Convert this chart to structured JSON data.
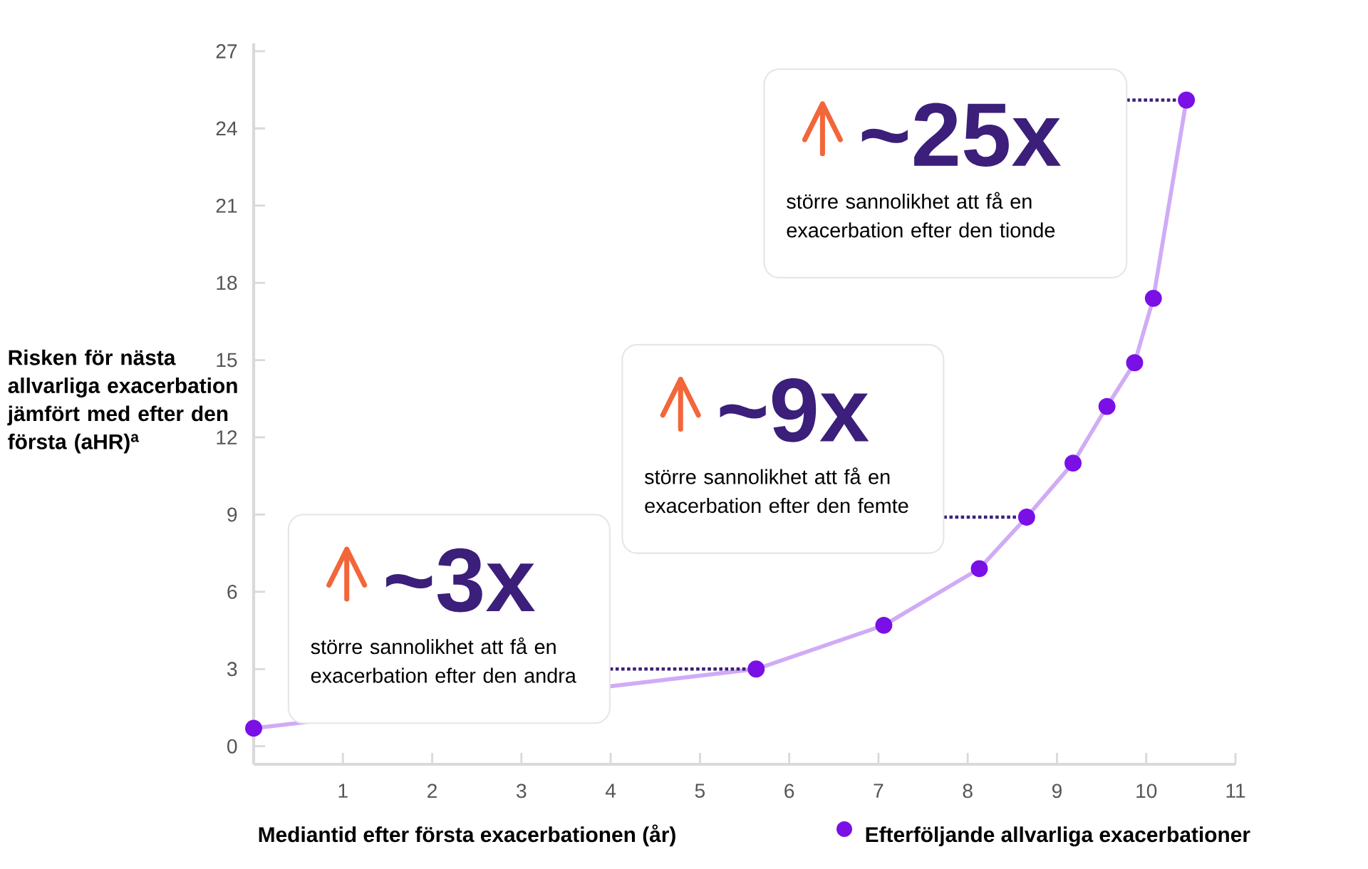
{
  "chart_data": {
    "type": "line",
    "xlabel": "Mediantid efter första exacerbationen (år)",
    "ylabel": "Risken för nästa allvarliga exacerbation jämfört med efter den första (aHR)$^{a}$",
    "x": [
      0,
      5.63,
      7.06,
      8.13,
      8.66,
      9.18,
      9.56,
      9.87,
      10.08,
      10.45
    ],
    "series": [
      {
        "name": "Efterföljande allvarliga exacerbationer",
        "color": "#7a10e6",
        "values": [
          0.7,
          3.0,
          4.7,
          6.9,
          8.9,
          11.0,
          13.2,
          14.9,
          17.4,
          25.1
        ]
      }
    ],
    "xlim": [
      0,
      11
    ],
    "ylim": [
      -0.7,
      27.3
    ],
    "xticks": [
      1,
      2,
      3,
      4,
      5,
      6,
      7,
      8,
      9,
      10,
      11
    ],
    "yticks": [
      0,
      3,
      6,
      9,
      12,
      15,
      18,
      21,
      24,
      27
    ],
    "marker": "circle",
    "line_style": "solid",
    "legend": "bottom right",
    "annotations": [
      {
        "text": "~3x",
        "x": 5.63,
        "y": 3.0
      },
      "större sannolikhet att få en exacerbation efter den andra",
      {
        "text": "~9x",
        "x": 8.66,
        "y": 8.9
      },
      "större sannolikhet att få en exacerbation efter den femte",
      {
        "text": "~25x",
        "x": 10.45,
        "y": 25.1
      },
      "större sannolikhet att få en exacerbation efter den tionde"
    ]
  }
}
